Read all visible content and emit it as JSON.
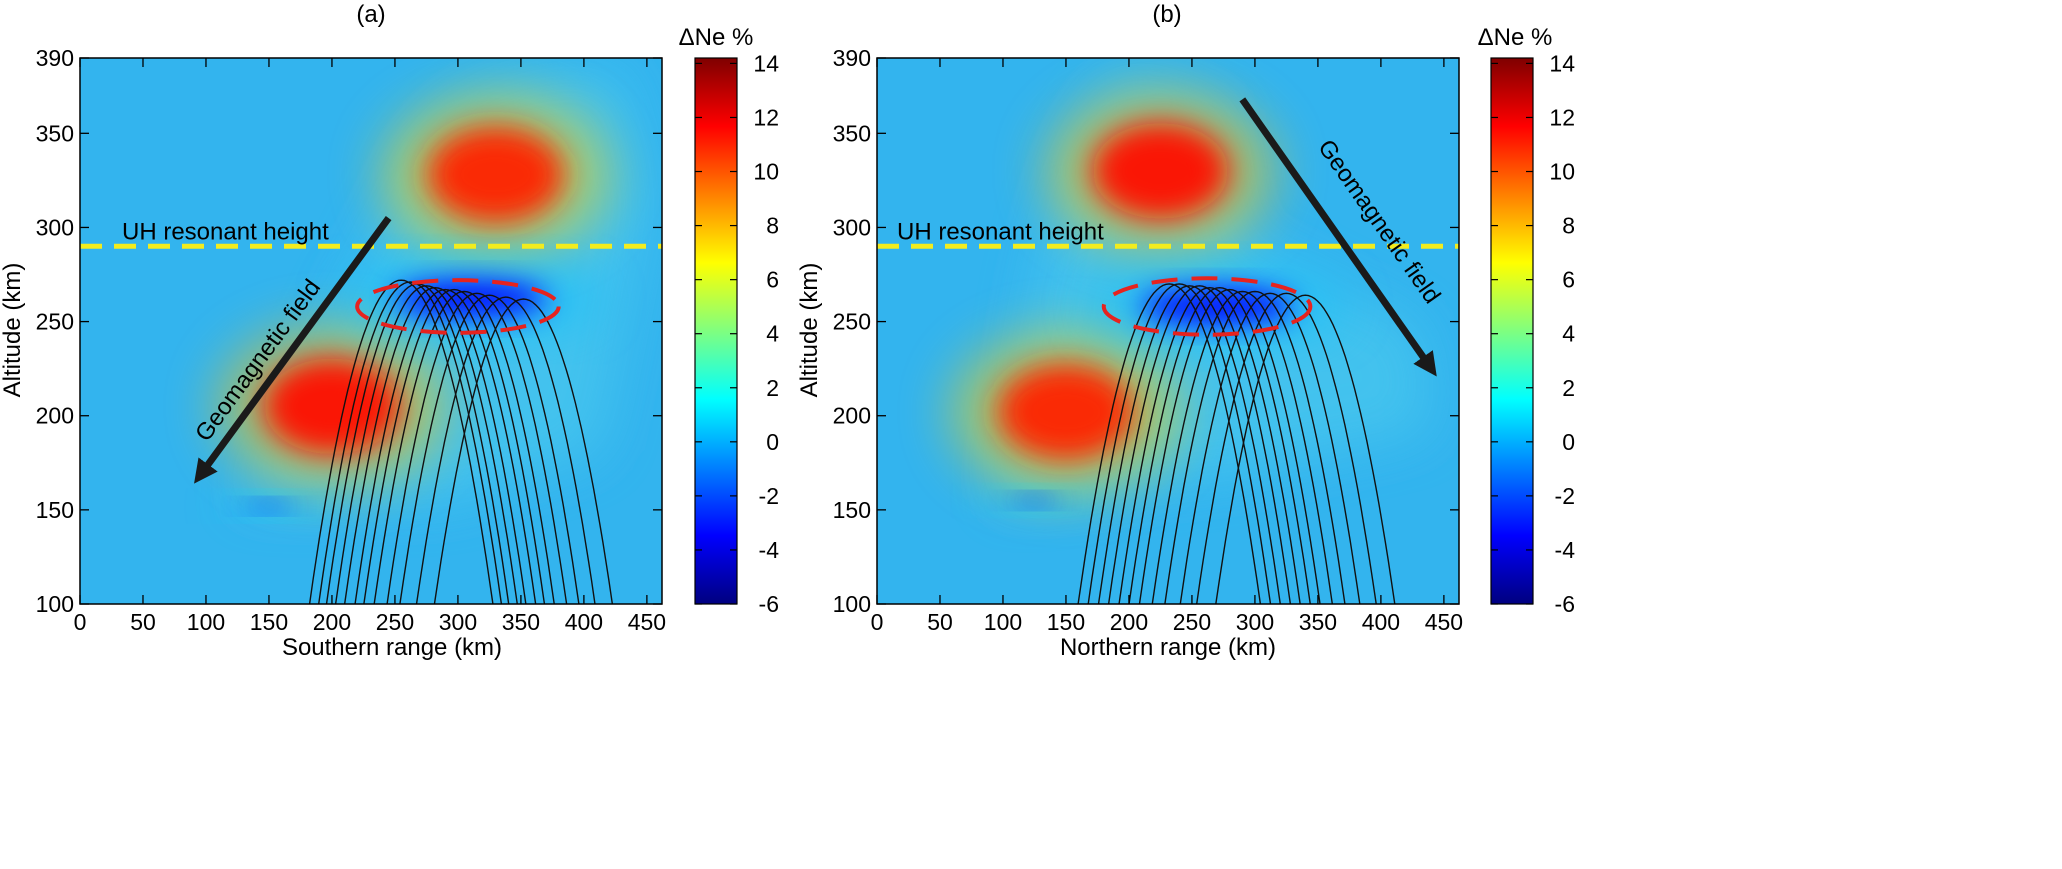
{
  "chart_data": [
    {
      "type": "heatmap",
      "panel_label": "(a)",
      "xlabel": "Southern range (km)",
      "ylabel": "Altitude (km)",
      "xlim": [
        0,
        462
      ],
      "ylim": [
        100,
        390
      ],
      "xticks": [
        0,
        50,
        100,
        150,
        200,
        250,
        300,
        350,
        400,
        450
      ],
      "yticks": [
        100,
        150,
        200,
        250,
        300,
        350,
        390
      ],
      "colorbar": {
        "label": "ΔNe %",
        "range": [
          -6,
          14.2
        ],
        "ticks": [
          14,
          12,
          10,
          8,
          6,
          4,
          2,
          0,
          -2,
          -4,
          -6
        ]
      },
      "features": [
        {
          "name": "upper enhancement",
          "x": 330,
          "y": 328,
          "value": 11
        },
        {
          "name": "lower enhancement",
          "x": 200,
          "y": 205,
          "value": 11.5
        },
        {
          "name": "depletion",
          "x": 310,
          "y": 262,
          "value": -3.5
        },
        {
          "name": "bottom depletion band",
          "x": 150,
          "y": 152,
          "value": -2
        }
      ],
      "annotations": {
        "resonant_label": "UH resonant height",
        "resonant_height": 290,
        "field_label": "Geomagnetic field",
        "field_arrow": {
          "from": [
            245,
            305
          ],
          "to": [
            95,
            168
          ]
        },
        "ellipse": {
          "cx": 300,
          "cy": 258,
          "rx": 80,
          "ry": 14
        }
      },
      "rays": {
        "count": 12,
        "apex_x": [
          255,
          262,
          268,
          275,
          282,
          290,
          297,
          305,
          315,
          325,
          338,
          352
        ],
        "apex_y": [
          272,
          271,
          270,
          269,
          268,
          267,
          267,
          266,
          265,
          264,
          263,
          262
        ]
      }
    },
    {
      "type": "heatmap",
      "panel_label": "(b)",
      "xlabel": "Northern range (km)",
      "ylabel": "Altitude (km)",
      "xlim": [
        0,
        462
      ],
      "ylim": [
        100,
        390
      ],
      "xticks": [
        0,
        50,
        100,
        150,
        200,
        250,
        300,
        350,
        400,
        450
      ],
      "yticks": [
        100,
        150,
        200,
        250,
        300,
        350,
        390
      ],
      "colorbar": {
        "label": "ΔNe %",
        "range": [
          -6,
          14.2
        ],
        "ticks": [
          14,
          12,
          10,
          8,
          6,
          4,
          2,
          0,
          -2,
          -4,
          -6
        ]
      },
      "features": [
        {
          "name": "upper enhancement",
          "x": 225,
          "y": 330,
          "value": 11.5
        },
        {
          "name": "lower enhancement",
          "x": 150,
          "y": 202,
          "value": 11
        },
        {
          "name": "depletion",
          "x": 270,
          "y": 258,
          "value": -3.5
        },
        {
          "name": "bottom depletion band",
          "x": 125,
          "y": 155,
          "value": -2
        }
      ],
      "annotations": {
        "resonant_label": "UH resonant height",
        "resonant_height": 290,
        "field_label": "Geomagnetic field",
        "field_arrow": {
          "from": [
            290,
            368
          ],
          "to": [
            440,
            225
          ]
        },
        "ellipse": {
          "cx": 262,
          "cy": 258,
          "rx": 82,
          "ry": 15
        }
      },
      "rays": {
        "count": 12,
        "apex_x": [
          232,
          240,
          248,
          256,
          264,
          272,
          280,
          290,
          300,
          312,
          325,
          340
        ],
        "apex_y": [
          270,
          270,
          269,
          269,
          268,
          268,
          267,
          266,
          266,
          265,
          265,
          264
        ]
      }
    }
  ]
}
